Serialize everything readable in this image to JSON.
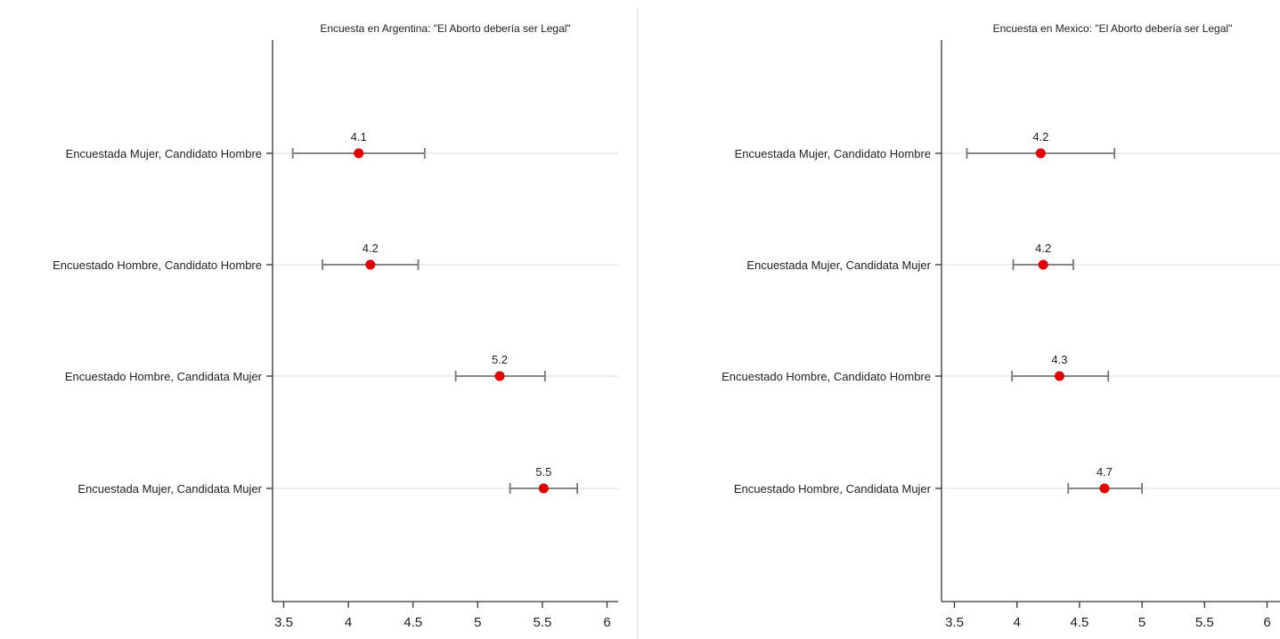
{
  "chart_data": [
    {
      "type": "scatter",
      "title": "Encuesta en Argentina: \"El Aborto debería ser Legal\"",
      "xlabel": "",
      "ylabel": "",
      "xlim": [
        3.45,
        6.1
      ],
      "xticks": [
        "3.5",
        "4",
        "4.5",
        "5",
        "5.5",
        "6"
      ],
      "grid": true,
      "colors": {
        "point": "#e00000",
        "errorbar": "#777777"
      },
      "rows": [
        {
          "category": "Encuestada Mujer, Candidato Hombre",
          "value": 4.08,
          "label": "4.1",
          "ci": [
            3.57,
            4.59
          ]
        },
        {
          "category": "Encuestado Hombre, Candidato Hombre",
          "value": 4.17,
          "label": "4.2",
          "ci": [
            3.8,
            4.54
          ]
        },
        {
          "category": "Encuestado Hombre, Candidata Mujer",
          "value": 5.17,
          "label": "5.2",
          "ci": [
            4.83,
            5.52
          ]
        },
        {
          "category": "Encuestada Mujer, Candidata Mujer",
          "value": 5.51,
          "label": "5.5",
          "ci": [
            5.25,
            5.77
          ]
        }
      ]
    },
    {
      "type": "scatter",
      "title": "Encuesta en Mexico: \"El Aborto debería ser Legal\"",
      "xlabel": "",
      "ylabel": "",
      "xlim": [
        3.45,
        6.05
      ],
      "xticks": [
        "3.5",
        "4",
        "4.5",
        "5",
        "5.5",
        "6"
      ],
      "grid": true,
      "colors": {
        "point": "#e00000",
        "errorbar": "#777777"
      },
      "rows": [
        {
          "category": "Encuestada Mujer, Candidato Hombre",
          "value": 4.19,
          "label": "4.2",
          "ci": [
            3.6,
            4.78
          ]
        },
        {
          "category": "Encuestada Mujer, Candidata Mujer",
          "value": 4.21,
          "label": "4.2",
          "ci": [
            3.97,
            4.45
          ]
        },
        {
          "category": "Encuestado Hombre, Candidato Hombre",
          "value": 4.34,
          "label": "4.3",
          "ci": [
            3.96,
            4.73
          ]
        },
        {
          "category": "Encuestado Hombre, Candidata Mujer",
          "value": 4.7,
          "label": "4.7",
          "ci": [
            4.41,
            5.0
          ]
        }
      ]
    }
  ]
}
